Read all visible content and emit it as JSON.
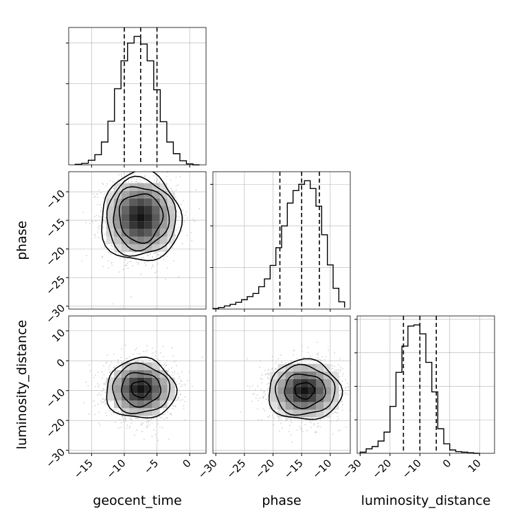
{
  "chart_data": {
    "type": "corner",
    "parameters": [
      "geocent_time",
      "phase",
      "luminosity_distance"
    ],
    "labels": {
      "geocent_time": "geocent_time",
      "phase": "phase",
      "luminosity_distance": "luminosity_distance"
    },
    "ranges": {
      "geocent_time": [
        -18.5,
        2.5
      ],
      "phase": [
        -30.5,
        -6.5
      ],
      "luminosity_distance": [
        -31,
        15
      ]
    },
    "ticks": {
      "geocent_time": [
        -15,
        -10,
        -5,
        0
      ],
      "phase": [
        -30,
        -25,
        -20,
        -15,
        -10
      ],
      "luminosity_distance": [
        -30,
        -20,
        -10,
        0,
        10
      ]
    },
    "quantiles": {
      "geocent_time": [
        -10.0,
        -7.5,
        -5.0
      ],
      "phase": [
        -18.8,
        -15.0,
        -11.9
      ],
      "luminosity_distance": [
        -15.5,
        -10.0,
        -4.5
      ]
    },
    "histograms": {
      "geocent_time": {
        "edges": [
          -17.5,
          -16.5,
          -15.5,
          -14.5,
          -13.5,
          -12.5,
          -11.5,
          -10.5,
          -9.5,
          -8.5,
          -7.5,
          -6.5,
          -5.5,
          -4.5,
          -3.5,
          -2.5,
          -1.5,
          -0.5,
          0.5,
          1.5
        ],
        "counts": [
          1,
          3,
          9,
          20,
          45,
          86,
          150,
          205,
          240,
          253,
          238,
          205,
          148,
          85,
          45,
          22,
          8,
          2,
          0
        ]
      },
      "phase": {
        "edges": [
          -30.5,
          -29.5,
          -28.5,
          -27.5,
          -26.5,
          -25.5,
          -24.5,
          -23.5,
          -22.5,
          -21.5,
          -20.5,
          -19.5,
          -18.5,
          -17.5,
          -16.5,
          -15.5,
          -14.5,
          -13.5,
          -12.5,
          -11.5,
          -10.5,
          -9.5,
          -8.5,
          -7.5
        ],
        "counts": [
          1,
          3,
          6,
          9,
          13,
          18,
          24,
          30,
          43,
          58,
          84,
          118,
          160,
          204,
          228,
          240,
          247,
          232,
          198,
          143,
          85,
          40,
          14,
          3
        ]
      },
      "luminosity_distance": {
        "edges": [
          -30,
          -28,
          -26,
          -24,
          -22,
          -20,
          -18,
          -16,
          -14,
          -12,
          -10,
          -8,
          -6,
          -4,
          -2,
          0,
          2,
          4,
          6,
          8,
          10
        ],
        "counts": [
          2,
          8,
          12,
          22,
          38,
          84,
          145,
          192,
          228,
          230,
          214,
          163,
          110,
          44,
          17,
          6,
          3,
          2,
          1,
          0
        ]
      }
    },
    "pairs": [
      {
        "x": "geocent_time",
        "y": "phase",
        "center": [
          -7.5,
          -14.5
        ],
        "sigma": [
          2.8,
          3.6
        ],
        "contours": [
          {
            "level": 0.5,
            "radius": 1.18
          },
          {
            "level": 1.0,
            "radius": 1.52
          },
          {
            "level": 1.5,
            "radius": 1.88
          },
          {
            "level": 2.0,
            "radius": 2.18
          }
        ]
      },
      {
        "x": "geocent_time",
        "y": "luminosity_distance",
        "center": [
          -7.5,
          -9.5
        ],
        "sigma": [
          2.6,
          4.9
        ],
        "contours": [
          {
            "level": 0.5,
            "radius": 0.55
          },
          {
            "level": 1.0,
            "radius": 1.15
          },
          {
            "level": 1.5,
            "radius": 1.68
          },
          {
            "level": 2.0,
            "radius": 2.05
          }
        ]
      },
      {
        "x": "phase",
        "y": "luminosity_distance",
        "center": [
          -14.5,
          -10.0
        ],
        "sigma": [
          3.1,
          4.9
        ],
        "contours": [
          {
            "level": 0.5,
            "radius": 0.55
          },
          {
            "level": 1.0,
            "radius": 1.15
          },
          {
            "level": 1.5,
            "radius": 1.68
          },
          {
            "level": 2.0,
            "radius": 2.05
          }
        ]
      }
    ],
    "grid": true,
    "colors": {
      "line": "#000000",
      "grid": "#b0b0b0",
      "points": "#bdbdbd",
      "background": "#ffffff"
    }
  }
}
